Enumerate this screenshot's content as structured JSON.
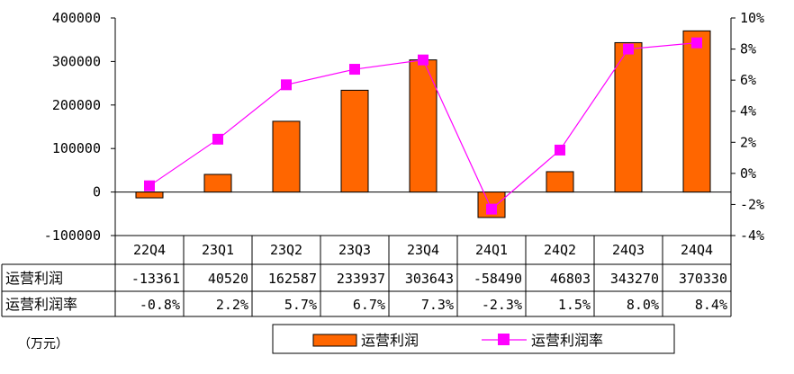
{
  "chart_data": {
    "type": "bar+line",
    "categories": [
      "22Q4",
      "23Q1",
      "23Q2",
      "23Q3",
      "23Q4",
      "24Q1",
      "24Q2",
      "24Q3",
      "24Q4"
    ],
    "series": [
      {
        "name": "运营利润",
        "type": "bar",
        "axis": "left",
        "values": [
          -13361,
          40520,
          162587,
          233937,
          303643,
          -58490,
          46803,
          343270,
          370330
        ],
        "labels": [
          "-13361",
          "40520",
          "162587",
          "233937",
          "303643",
          "-58490",
          "46803",
          "343270",
          "370330"
        ]
      },
      {
        "name": "运营利润率",
        "type": "line",
        "axis": "right",
        "values": [
          -0.8,
          2.2,
          5.7,
          6.7,
          7.3,
          -2.3,
          1.5,
          8.0,
          8.4
        ],
        "labels": [
          "-0.8%",
          "2.2%",
          "5.7%",
          "6.7%",
          "7.3%",
          "-2.3%",
          "1.5%",
          "8.0%",
          "8.4%"
        ]
      }
    ],
    "y_left": {
      "ylim": [
        -100000,
        400000
      ],
      "ticks": [
        -100000,
        0,
        100000,
        200000,
        300000,
        400000
      ],
      "tick_labels": [
        "-100000",
        "0",
        "100000",
        "200000",
        "300000",
        "400000"
      ]
    },
    "y_right": {
      "ylim": [
        -4,
        10
      ],
      "ticks": [
        -4,
        -2,
        0,
        2,
        4,
        6,
        8,
        10
      ],
      "tick_labels": [
        "-4%",
        "-2%",
        "0%",
        "2%",
        "4%",
        "6%",
        "8%",
        "10%"
      ]
    },
    "unit_label": "（万元）",
    "legend_position": "bottom",
    "grid": false,
    "colors": {
      "bar": "#FF6600",
      "bar_edge": "#000000",
      "line": "#FF00FF",
      "marker": "#FF00FF"
    }
  }
}
